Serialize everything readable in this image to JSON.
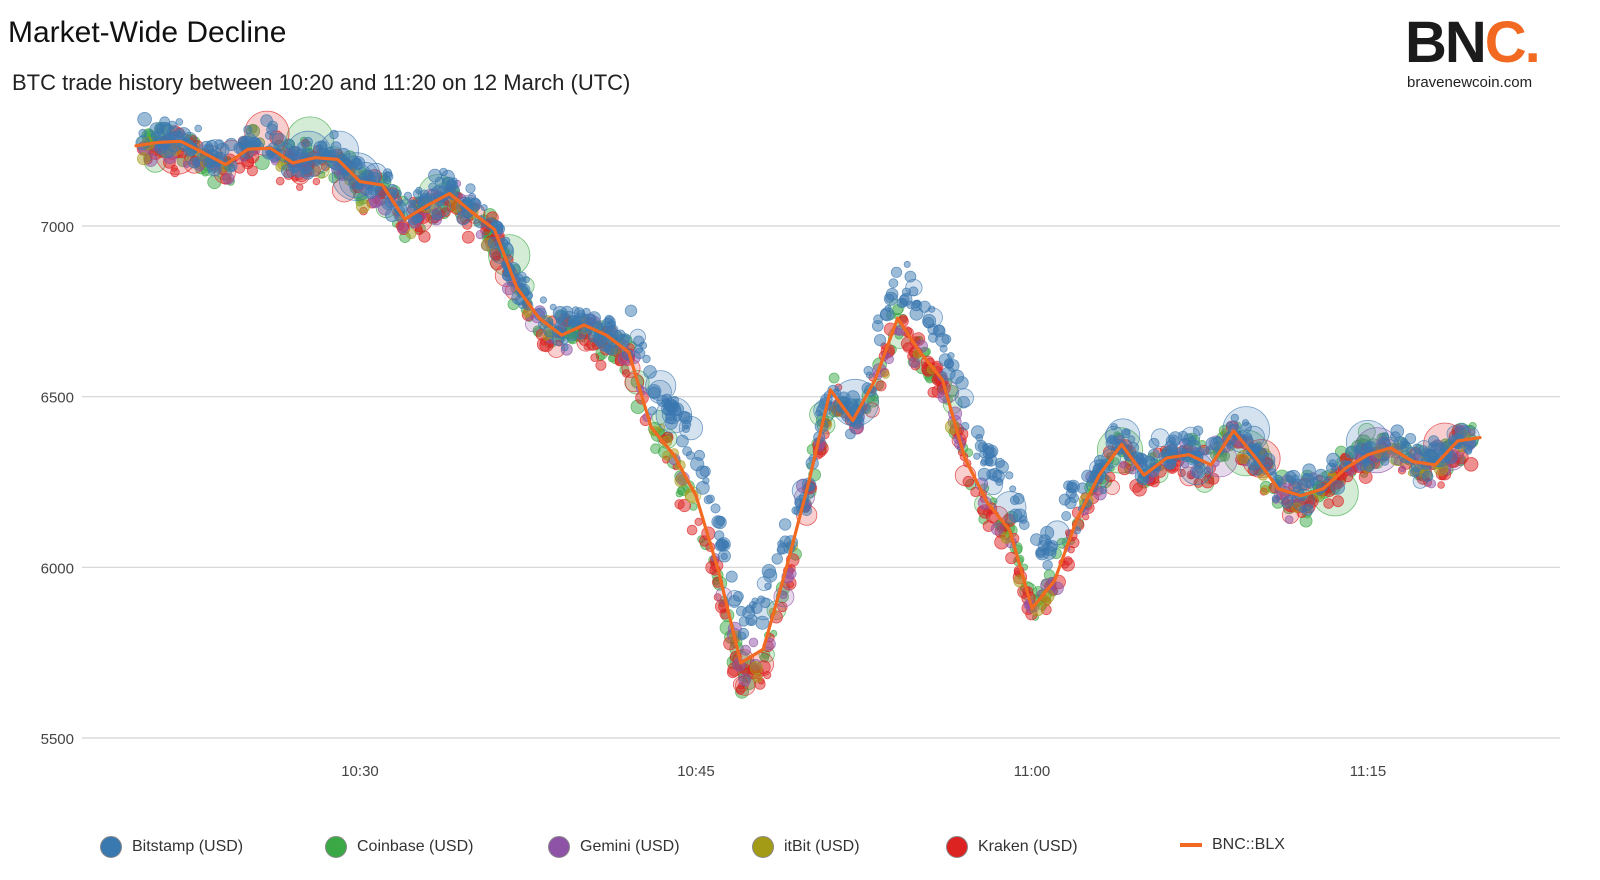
{
  "header": {
    "title": "Market-Wide Decline",
    "subtitle": "BTC trade history between 10:20 and 11:20 on 12 March (UTC)"
  },
  "logo": {
    "mark_main": "BN",
    "mark_accent": "C.",
    "domain": "bravenewcoin.com",
    "accent_color": "#f26a21"
  },
  "chart_data": {
    "type": "scatter",
    "title": "Market-Wide Decline",
    "subtitle": "BTC trade history between 10:20 and 11:20 on 12 March (UTC)",
    "xlabel": "",
    "ylabel": "",
    "xlim": [
      "10:20",
      "11:20"
    ],
    "ylim": [
      5500,
      7300
    ],
    "yticks": [
      5500,
      6000,
      6500,
      7000
    ],
    "xticks": [
      "10:30",
      "10:45",
      "11:00",
      "11:15"
    ],
    "grid": "horizontal",
    "legend_position": "bottom",
    "series": [
      {
        "name": "Bitstamp (USD)",
        "color": "#3a78b0",
        "kind": "scatter"
      },
      {
        "name": "Coinbase (USD)",
        "color": "#3aa845",
        "kind": "scatter"
      },
      {
        "name": "Gemini (USD)",
        "color": "#8e52a6",
        "kind": "scatter"
      },
      {
        "name": "itBit (USD)",
        "color": "#a39a15",
        "kind": "scatter"
      },
      {
        "name": "Kraken (USD)",
        "color": "#dd2222",
        "kind": "scatter"
      },
      {
        "name": "BNC::BLX",
        "color": "#f26a21",
        "kind": "line"
      }
    ],
    "blx": {
      "x": [
        "10:20",
        "10:21",
        "10:22",
        "10:23",
        "10:24",
        "10:25",
        "10:26",
        "10:27",
        "10:28",
        "10:29",
        "10:30",
        "10:31",
        "10:32",
        "10:33",
        "10:34",
        "10:35",
        "10:36",
        "10:37",
        "10:38",
        "10:39",
        "10:40",
        "10:41",
        "10:42",
        "10:43",
        "10:44",
        "10:45",
        "10:46",
        "10:47",
        "10:48",
        "10:49",
        "10:50",
        "10:51",
        "10:52",
        "10:53",
        "10:54",
        "10:55",
        "10:56",
        "10:57",
        "10:58",
        "10:59",
        "11:00",
        "11:01",
        "11:02",
        "11:03",
        "11:04",
        "11:05",
        "11:06",
        "11:07",
        "11:08",
        "11:09",
        "11:10",
        "11:11",
        "11:12",
        "11:13",
        "11:14",
        "11:15",
        "11:16",
        "11:17",
        "11:18",
        "11:19",
        "11:20"
      ],
      "y": [
        7235,
        7245,
        7248,
        7215,
        7180,
        7225,
        7228,
        7185,
        7200,
        7195,
        7130,
        7120,
        7020,
        7060,
        7095,
        7040,
        6990,
        6820,
        6730,
        6680,
        6710,
        6680,
        6630,
        6410,
        6330,
        6210,
        5990,
        5720,
        5760,
        5990,
        6240,
        6520,
        6430,
        6550,
        6730,
        6630,
        6550,
        6320,
        6190,
        6110,
        5880,
        5960,
        6140,
        6270,
        6360,
        6270,
        6320,
        6330,
        6300,
        6400,
        6320,
        6230,
        6210,
        6230,
        6290,
        6330,
        6350,
        6310,
        6300,
        6370,
        6380
      ]
    }
  }
}
